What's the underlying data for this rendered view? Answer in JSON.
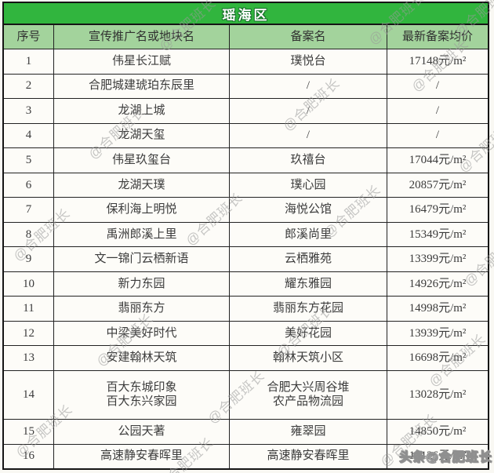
{
  "title": "瑶海区",
  "columns": [
    "序号",
    "宣传推广名或地块名",
    "备案名",
    "最新备案均价"
  ],
  "rows": [
    {
      "no": "1",
      "name": "伟星长江赋",
      "filing": "璞悦台",
      "price": "17148元/m²"
    },
    {
      "no": "2",
      "name": "合肥城建琥珀东辰里",
      "filing": "/",
      "price": "/"
    },
    {
      "no": "3",
      "name": "龙湖上城",
      "filing": "/",
      "price": "/"
    },
    {
      "no": "4",
      "name": "龙湖天玺",
      "filing": "/",
      "price": "/"
    },
    {
      "no": "5",
      "name": "伟星玖玺台",
      "filing": "玖禧台",
      "price": "17044元/m²"
    },
    {
      "no": "6",
      "name": "龙湖天璞",
      "filing": "璞心园",
      "price": "20857元/m²"
    },
    {
      "no": "7",
      "name": "保利海上明悦",
      "filing": "海悦公馆",
      "price": "16479元/m²"
    },
    {
      "no": "8",
      "name": "禹洲郎溪上里",
      "filing": "郎溪尚里",
      "price": "15349元/m²"
    },
    {
      "no": "9",
      "name": "文一锦门云栖新语",
      "filing": "云栖雅苑",
      "price": "13399元/m²"
    },
    {
      "no": "10",
      "name": "新力东园",
      "filing": "耀东雅园",
      "price": "14926元/m²"
    },
    {
      "no": "11",
      "name": "翡丽东方",
      "filing": "翡丽东方花园",
      "price": "14998元/m²"
    },
    {
      "no": "12",
      "name": "中梁美好时代",
      "filing": "美好花园",
      "price": "13939元/m²"
    },
    {
      "no": "13",
      "name": "安建翰林天筑",
      "filing": "翰林天筑小区",
      "price": "16698元/m²"
    },
    {
      "no": "14",
      "name": "百大东城印象\n百大东兴家园",
      "filing": "合肥大兴周谷堆\n农产品物流园",
      "price": "13028元/m²",
      "tall": true
    },
    {
      "no": "15",
      "name": "公园天著",
      "filing": "雍翠园",
      "price": "14850元/m²"
    },
    {
      "no": "16",
      "name": "高速静安春晖里",
      "filing": "高速静安春晖里",
      "price": "13126元/m²"
    }
  ],
  "watermark_text": "@合肥班长",
  "stamp_text": "头条@合肥班长",
  "colors": {
    "title_bg": "#31b53e",
    "title_text": "#ffffff",
    "title_text_outline": "#17702a",
    "header_bg": "#a3d39c",
    "cell_text": "#3b3b3b",
    "border": "#222222",
    "watermark": "#9a9a9a"
  },
  "chart_data": {
    "type": "table",
    "title": "瑶海区",
    "columns": [
      "序号",
      "宣传推广名或地块名",
      "备案名",
      "最新备案均价"
    ],
    "rows": [
      [
        "1",
        "伟星长江赋",
        "璞悦台",
        "17148元/m²"
      ],
      [
        "2",
        "合肥城建琥珀东辰里",
        "/",
        "/"
      ],
      [
        "3",
        "龙湖上城",
        "/",
        "/"
      ],
      [
        "4",
        "龙湖天玺",
        "/",
        "/"
      ],
      [
        "5",
        "伟星玖玺台",
        "玖禧台",
        "17044元/m²"
      ],
      [
        "6",
        "龙湖天璞",
        "璞心园",
        "20857元/m²"
      ],
      [
        "7",
        "保利海上明悦",
        "海悦公馆",
        "16479元/m²"
      ],
      [
        "8",
        "禹洲郎溪上里",
        "郎溪尚里",
        "15349元/m²"
      ],
      [
        "9",
        "文一锦门云栖新语",
        "云栖雅苑",
        "13399元/m²"
      ],
      [
        "10",
        "新力东园",
        "耀东雅园",
        "14926元/m²"
      ],
      [
        "11",
        "翡丽东方",
        "翡丽东方花园",
        "14998元/m²"
      ],
      [
        "12",
        "中梁美好时代",
        "美好花园",
        "13939元/m²"
      ],
      [
        "13",
        "安建翰林天筑",
        "翰林天筑小区",
        "16698元/m²"
      ],
      [
        "14",
        "百大东城印象 百大东兴家园",
        "合肥大兴周谷堆 农产品物流园",
        "13028元/m²"
      ],
      [
        "15",
        "公园天著",
        "雍翠园",
        "14850元/m²"
      ],
      [
        "16",
        "高速静安春晖里",
        "高速静安春晖里",
        "13126元/m²"
      ]
    ]
  }
}
